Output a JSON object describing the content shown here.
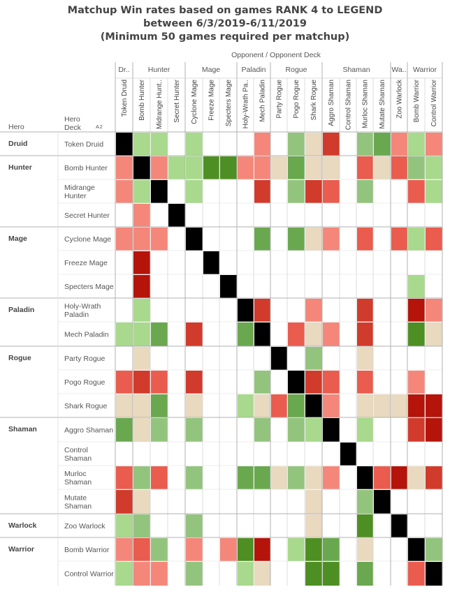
{
  "title_lines": [
    "Matchup Win rates based on games RANK 4 to LEGEND",
    "between 6/3/2019-6/11/2019",
    "(Minimum 50 games required per matchup)"
  ],
  "opponent_axis_label": "Opponent  /  Opponent Deck",
  "row_header_hero": "Hero",
  "row_header_deck": "Hero\nDeck",
  "sort_indicator": "A 2",
  "colors": {
    "mirror": "#000000",
    "empty": "#ffffff",
    "grid": "#cccccc",
    "dark_green": "#4e8f23",
    "green": "#6aa84f",
    "light_green": "#93c47d",
    "pale_green": "#a8d98c",
    "neutral": "#e8d9bf",
    "light_red": "#f4877a",
    "red": "#ea5c4e",
    "dark_red": "#d13b2b",
    "deep_red": "#b5140b"
  },
  "chart_data": {
    "type": "heatmap",
    "scale": "color-coded win rate category (empty = under 50 games, mirror = same deck)",
    "hero_groups": [
      {
        "hero": "Druid",
        "decks": [
          "Token Druid"
        ]
      },
      {
        "hero": "Hunter",
        "decks": [
          "Bomb Hunter",
          "Midrange Hunter",
          "Secret Hunter"
        ]
      },
      {
        "hero": "Mage",
        "decks": [
          "Cyclone Mage",
          "Freeze Mage",
          "Specters Mage"
        ]
      },
      {
        "hero": "Paladin",
        "decks": [
          "Holy-Wrath Paladin",
          "Mech Paladin"
        ]
      },
      {
        "hero": "Rogue",
        "decks": [
          "Party Rogue",
          "Pogo Rogue",
          "Shark Rogue"
        ]
      },
      {
        "hero": "Shaman",
        "decks": [
          "Aggro Shaman",
          "Control Shaman",
          "Murloc Shaman",
          "Mutate Shaman"
        ]
      },
      {
        "hero": "Warlock",
        "decks": [
          "Zoo Warlock"
        ]
      },
      {
        "hero": "Warrior",
        "decks": [
          "Bomb Warrior",
          "Control Warrior"
        ]
      }
    ],
    "opponent_groups": [
      {
        "hero": "Dr..",
        "decks": [
          "Token Druid"
        ]
      },
      {
        "hero": "Hunter",
        "decks": [
          "Bomb Hunter",
          "Midrange Hunt..",
          "Secret Hunter"
        ]
      },
      {
        "hero": "Mage",
        "decks": [
          "Cyclone Mage",
          "Freeze Mage",
          "Specters Mage"
        ]
      },
      {
        "hero": "Paladin",
        "decks": [
          "Holy-Wrath Pa..",
          "Mech Paladin"
        ]
      },
      {
        "hero": "Rogue",
        "decks": [
          "Party Rogue",
          "Pogo Rogue",
          "Shark Rogue"
        ]
      },
      {
        "hero": "Shaman",
        "decks": [
          "Aggro Shaman",
          "Control Shaman",
          "Murloc Shaman",
          "Mutate Shaman"
        ]
      },
      {
        "hero": "Wa..",
        "decks": [
          "Zoo Warlock"
        ]
      },
      {
        "hero": "Warrior",
        "decks": [
          "Bomb Warrior",
          "Control Warrior"
        ]
      }
    ],
    "row_labels": [
      "Token Druid",
      "Bomb Hunter",
      "Midrange\nHunter",
      "Secret Hunter",
      "Cyclone Mage",
      "Freeze Mage",
      "Specters Mage",
      "Holy-Wrath\nPaladin",
      "Mech Paladin",
      "Party Rogue",
      "Pogo Rogue",
      "Shark Rogue",
      "Aggro Shaman",
      "Control\nShaman",
      "Murloc\nShaman",
      "Mutate\nShaman",
      "Zoo Warlock",
      "Bomb Warrior",
      "Control Warrior"
    ],
    "legend": "M = mirror, . = empty, DG = dark green, G = green, LG = light green, PG = pale green, N = neutral, LR = light red, R = red, DR = dark red, DDR = deep red",
    "cells": [
      [
        "M",
        "PG",
        "PG",
        ".",
        "PG",
        ".",
        ".",
        ".",
        "LR",
        ".",
        "LG",
        "N",
        "DR",
        ".",
        "LG",
        "G",
        "LR",
        "PG",
        "LR"
      ],
      [
        "LR",
        "M",
        "LR",
        "PG",
        "PG",
        "DG",
        "DG",
        "LR",
        "LR",
        "N",
        "G",
        "N",
        "N",
        ".",
        "R",
        "N",
        "R",
        "LG",
        "PG"
      ],
      [
        "LR",
        "PG",
        "M",
        ".",
        "PG",
        ".",
        ".",
        ".",
        "DR",
        ".",
        "LG",
        "DR",
        "R",
        ".",
        "LG",
        ".",
        ".",
        "R",
        "PG"
      ],
      [
        ".",
        "LR",
        ".",
        "M",
        ".",
        ".",
        ".",
        ".",
        ".",
        ".",
        ".",
        ".",
        ".",
        ".",
        ".",
        ".",
        ".",
        ".",
        "."
      ],
      [
        "LR",
        "LR",
        "LR",
        ".",
        "M",
        ".",
        ".",
        ".",
        "G",
        ".",
        "G",
        "N",
        "LR",
        ".",
        "R",
        ".",
        "R",
        "PG",
        "R"
      ],
      [
        ".",
        "DDR",
        ".",
        ".",
        ".",
        "M",
        ".",
        ".",
        ".",
        ".",
        ".",
        ".",
        ".",
        ".",
        ".",
        ".",
        ".",
        ".",
        "."
      ],
      [
        ".",
        "DDR",
        ".",
        ".",
        ".",
        ".",
        "M",
        ".",
        ".",
        ".",
        ".",
        ".",
        ".",
        ".",
        ".",
        ".",
        ".",
        "PG",
        "."
      ],
      [
        ".",
        "PG",
        ".",
        ".",
        ".",
        ".",
        ".",
        "M",
        "DR",
        ".",
        ".",
        "LR",
        ".",
        ".",
        "DR",
        ".",
        ".",
        "DDR",
        "LR"
      ],
      [
        "PG",
        "PG",
        "G",
        ".",
        "DR",
        ".",
        ".",
        "G",
        "M",
        ".",
        "R",
        "N",
        "LR",
        ".",
        "DR",
        ".",
        ".",
        "DG",
        "N"
      ],
      [
        ".",
        "N",
        ".",
        ".",
        ".",
        ".",
        ".",
        ".",
        ".",
        "M",
        ".",
        "LG",
        ".",
        ".",
        "N",
        ".",
        ".",
        ".",
        "."
      ],
      [
        "R",
        "DR",
        "R",
        ".",
        "DR",
        ".",
        ".",
        ".",
        "LG",
        ".",
        "M",
        "DR",
        "R",
        ".",
        "R",
        ".",
        ".",
        "LR",
        "."
      ],
      [
        "N",
        "N",
        "G",
        ".",
        "N",
        ".",
        ".",
        "PG",
        "N",
        "R",
        "G",
        "M",
        "LR",
        ".",
        "N",
        "N",
        "N",
        "DDR",
        "DDR"
      ],
      [
        "G",
        "N",
        "LG",
        ".",
        "LG",
        ".",
        ".",
        ".",
        "LG",
        ".",
        "LG",
        "PG",
        "M",
        ".",
        "PG",
        ".",
        ".",
        "DR",
        "DDR"
      ],
      [
        ".",
        ".",
        ".",
        ".",
        ".",
        ".",
        ".",
        ".",
        ".",
        ".",
        ".",
        ".",
        ".",
        "M",
        ".",
        ".",
        ".",
        ".",
        "."
      ],
      [
        "R",
        "LG",
        "R",
        ".",
        "LG",
        ".",
        ".",
        "G",
        "G",
        "N",
        "LG",
        "N",
        "LR",
        ".",
        "M",
        "R",
        "DDR",
        "N",
        "DR"
      ],
      [
        "DR",
        "N",
        ".",
        ".",
        ".",
        ".",
        ".",
        ".",
        ".",
        ".",
        ".",
        "N",
        ".",
        ".",
        "LG",
        "M",
        ".",
        ".",
        "."
      ],
      [
        "PG",
        "LG",
        ".",
        ".",
        "LG",
        ".",
        ".",
        ".",
        ".",
        ".",
        ".",
        "N",
        ".",
        ".",
        "DG",
        ".",
        "M",
        ".",
        "."
      ],
      [
        "LR",
        "R",
        "LG",
        ".",
        "LR",
        ".",
        "LR",
        "DG",
        "DDR",
        ".",
        "PG",
        "DG",
        "G",
        ".",
        "N",
        ".",
        ".",
        "M",
        "LG"
      ],
      [
        "PG",
        "LR",
        "LR",
        ".",
        "LG",
        ".",
        ".",
        "PG",
        "N",
        ".",
        ".",
        "DG",
        "DG",
        ".",
        "G",
        ".",
        ".",
        "R",
        "M"
      ]
    ]
  }
}
